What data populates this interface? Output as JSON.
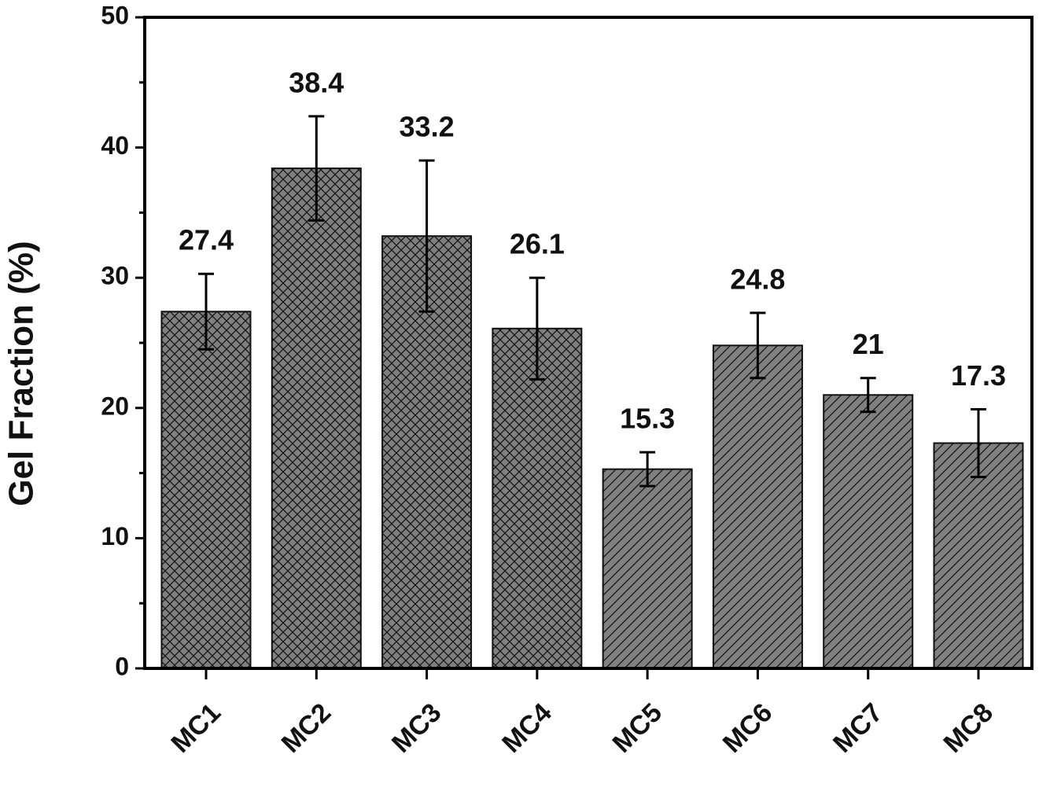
{
  "chart_data": {
    "type": "bar",
    "y_label": "Gel Fraction (%)",
    "categories": [
      "MC1",
      "MC2",
      "MC3",
      "MC4",
      "MC5",
      "MC6",
      "MC7",
      "MC8"
    ],
    "values": [
      27.4,
      38.4,
      33.2,
      26.1,
      15.3,
      24.8,
      21,
      17.3
    ],
    "errors": [
      2.9,
      4.0,
      5.8,
      3.9,
      1.3,
      2.5,
      1.3,
      2.6
    ],
    "patterns": [
      "crosshatch",
      "crosshatch",
      "crosshatch",
      "crosshatch",
      "diagonal",
      "diagonal",
      "diagonal",
      "diagonal"
    ],
    "color": "#808080",
    "ylim": [
      0,
      50
    ],
    "yticks": [
      0,
      10,
      20,
      30,
      40,
      50
    ],
    "yminorticks": [
      5,
      15,
      25,
      35,
      45
    ]
  }
}
